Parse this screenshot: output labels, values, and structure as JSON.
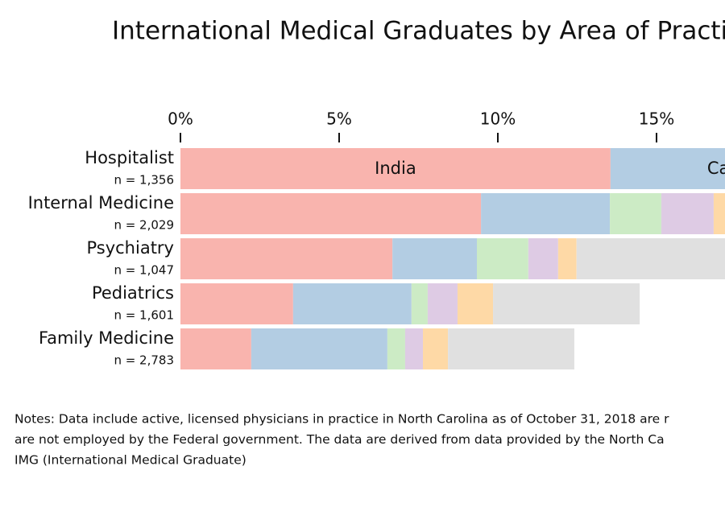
{
  "chart_data": {
    "type": "stacked_barh",
    "title": "International Medical Graduates by Area of Practi",
    "categories": [
      "Hospitalist",
      "Internal Medicine",
      "Psychiatry",
      "Pediatrics",
      "Family Medicine"
    ],
    "category_notes": [
      "n = 1,356",
      "n = 2,029",
      "n = 1,047",
      "n = 1,601",
      "n = 2,783"
    ],
    "series": [
      {
        "name": "India",
        "color": "#f9b4ae",
        "values": [
          13.55,
          9.47,
          6.68,
          3.55,
          2.23
        ]
      },
      {
        "name": "Ca",
        "color": "#b3cde3",
        "values": [
          3.7,
          4.06,
          2.66,
          3.73,
          4.29
        ]
      },
      {
        "color": "#ccebc5",
        "values": [
          null,
          1.62,
          1.62,
          0.51,
          0.56
        ]
      },
      {
        "color": "#decbe4",
        "values": [
          null,
          1.65,
          0.94,
          0.94,
          0.56
        ]
      },
      {
        "color": "#fed9a6",
        "values": [
          null,
          0.4,
          0.58,
          1.12,
          0.79
        ]
      },
      {
        "color": "#e0e0e0",
        "values": [
          null,
          null,
          4.7,
          4.62,
          3.98
        ]
      }
    ],
    "segment_label_row": 0,
    "xlim": [
      0,
      17.2
    ],
    "xticks": [
      {
        "value": 0,
        "label": "0%"
      },
      {
        "value": 5,
        "label": "5%"
      },
      {
        "value": 10,
        "label": "10%"
      },
      {
        "value": 15,
        "label": "15%"
      }
    ],
    "notes": [
      "Notes: Data include active, licensed physicians in practice in North Carolina as of October 31, 2018 are r",
      "are not employed by the Federal government. The data are derived from data provided by the North Ca",
      "IMG (International Medical Graduate)"
    ]
  }
}
